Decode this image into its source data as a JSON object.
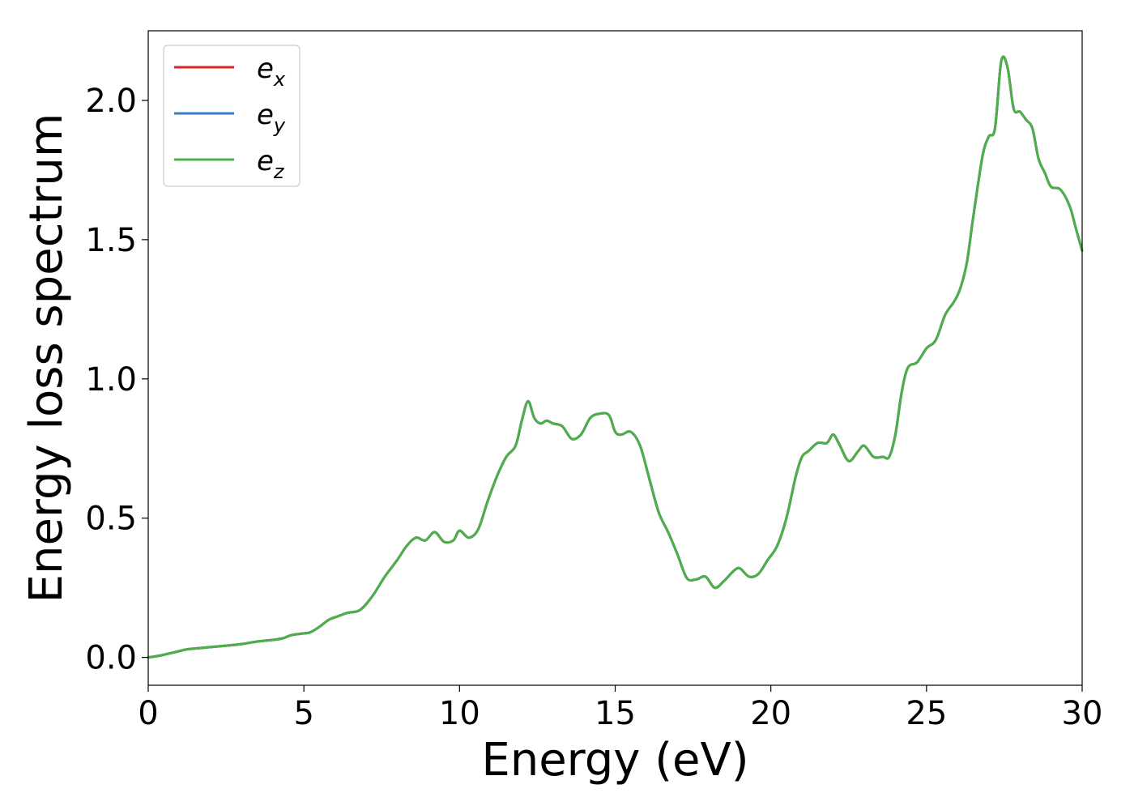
{
  "chart_data": {
    "type": "line",
    "title": "",
    "xlabel": "Energy (eV)",
    "ylabel": "Energy loss spectrum",
    "xlim": [
      0,
      30
    ],
    "ylim": [
      -0.1,
      2.25
    ],
    "xticks": [
      0,
      5,
      10,
      15,
      20,
      25,
      30
    ],
    "xtick_labels": [
      "0",
      "5",
      "10",
      "15",
      "20",
      "25",
      "30"
    ],
    "yticks": [
      0.0,
      0.5,
      1.0,
      1.5,
      2.0
    ],
    "ytick_labels": [
      "0.0",
      "0.5",
      "1.0",
      "1.5",
      "2.0"
    ],
    "grid": false,
    "legend_position": "top-left",
    "x": [
      0,
      0.3,
      0.6,
      0.9,
      1.2,
      1.5,
      2.0,
      2.5,
      3.0,
      3.5,
      4.0,
      4.3,
      4.6,
      4.9,
      5.2,
      5.5,
      5.8,
      6.1,
      6.4,
      6.8,
      7.2,
      7.6,
      8.0,
      8.3,
      8.6,
      8.9,
      9.2,
      9.5,
      9.8,
      10.0,
      10.3,
      10.6,
      10.9,
      11.2,
      11.5,
      11.8,
      12.0,
      12.2,
      12.4,
      12.6,
      12.8,
      13.0,
      13.3,
      13.6,
      13.9,
      14.2,
      14.5,
      14.8,
      15.0,
      15.2,
      15.5,
      15.8,
      16.1,
      16.4,
      16.7,
      17.0,
      17.3,
      17.6,
      17.9,
      18.2,
      18.5,
      18.8,
      19.0,
      19.3,
      19.6,
      19.9,
      20.2,
      20.5,
      20.8,
      21.0,
      21.2,
      21.5,
      21.8,
      22.0,
      22.2,
      22.5,
      22.8,
      23.0,
      23.3,
      23.6,
      23.8,
      24.0,
      24.2,
      24.4,
      24.7,
      25.0,
      25.3,
      25.6,
      25.9,
      26.1,
      26.3,
      26.5,
      26.8,
      27.0,
      27.2,
      27.4,
      27.6,
      27.8,
      28.0,
      28.2,
      28.4,
      28.6,
      28.8,
      29.0,
      29.3,
      29.6,
      29.8,
      30.0
    ],
    "series": [
      {
        "name": "e_x",
        "color": "#d62728",
        "y": [
          0.0,
          0.005,
          0.012,
          0.02,
          0.028,
          0.032,
          0.037,
          0.042,
          0.048,
          0.057,
          0.063,
          0.068,
          0.08,
          0.085,
          0.09,
          0.11,
          0.135,
          0.148,
          0.16,
          0.17,
          0.22,
          0.29,
          0.35,
          0.4,
          0.43,
          0.42,
          0.45,
          0.415,
          0.42,
          0.455,
          0.43,
          0.46,
          0.56,
          0.65,
          0.72,
          0.76,
          0.85,
          0.92,
          0.86,
          0.84,
          0.85,
          0.84,
          0.83,
          0.785,
          0.8,
          0.86,
          0.875,
          0.87,
          0.81,
          0.8,
          0.81,
          0.76,
          0.64,
          0.52,
          0.45,
          0.37,
          0.285,
          0.28,
          0.29,
          0.25,
          0.275,
          0.31,
          0.32,
          0.29,
          0.3,
          0.35,
          0.4,
          0.5,
          0.65,
          0.72,
          0.74,
          0.77,
          0.77,
          0.8,
          0.765,
          0.705,
          0.74,
          0.76,
          0.72,
          0.72,
          0.72,
          0.8,
          0.95,
          1.04,
          1.06,
          1.11,
          1.14,
          1.23,
          1.28,
          1.33,
          1.42,
          1.58,
          1.8,
          1.87,
          1.9,
          2.14,
          2.12,
          1.97,
          1.96,
          1.93,
          1.9,
          1.79,
          1.74,
          1.69,
          1.68,
          1.62,
          1.54,
          1.46
        ]
      },
      {
        "name": "e_y",
        "color": "#377eb8",
        "y": [
          0.0,
          0.005,
          0.012,
          0.02,
          0.028,
          0.032,
          0.037,
          0.042,
          0.048,
          0.057,
          0.063,
          0.068,
          0.08,
          0.085,
          0.09,
          0.11,
          0.135,
          0.148,
          0.16,
          0.17,
          0.22,
          0.29,
          0.35,
          0.4,
          0.43,
          0.42,
          0.45,
          0.415,
          0.42,
          0.455,
          0.43,
          0.46,
          0.56,
          0.65,
          0.72,
          0.76,
          0.85,
          0.92,
          0.86,
          0.84,
          0.85,
          0.84,
          0.83,
          0.785,
          0.8,
          0.86,
          0.875,
          0.87,
          0.81,
          0.8,
          0.81,
          0.76,
          0.64,
          0.52,
          0.45,
          0.37,
          0.285,
          0.28,
          0.29,
          0.25,
          0.275,
          0.31,
          0.32,
          0.29,
          0.3,
          0.35,
          0.4,
          0.5,
          0.65,
          0.72,
          0.74,
          0.77,
          0.77,
          0.8,
          0.765,
          0.705,
          0.74,
          0.76,
          0.72,
          0.72,
          0.72,
          0.8,
          0.95,
          1.04,
          1.06,
          1.11,
          1.14,
          1.23,
          1.28,
          1.33,
          1.42,
          1.58,
          1.8,
          1.87,
          1.9,
          2.14,
          2.12,
          1.97,
          1.96,
          1.93,
          1.9,
          1.79,
          1.74,
          1.69,
          1.68,
          1.62,
          1.54,
          1.46
        ]
      },
      {
        "name": "e_z",
        "color": "#4daf4a",
        "y": [
          0.0,
          0.005,
          0.012,
          0.02,
          0.028,
          0.032,
          0.037,
          0.042,
          0.048,
          0.057,
          0.063,
          0.068,
          0.08,
          0.085,
          0.09,
          0.11,
          0.135,
          0.148,
          0.16,
          0.17,
          0.22,
          0.29,
          0.35,
          0.4,
          0.43,
          0.42,
          0.45,
          0.415,
          0.42,
          0.455,
          0.43,
          0.46,
          0.56,
          0.65,
          0.72,
          0.76,
          0.85,
          0.92,
          0.86,
          0.84,
          0.85,
          0.84,
          0.83,
          0.785,
          0.8,
          0.86,
          0.875,
          0.87,
          0.81,
          0.8,
          0.81,
          0.76,
          0.64,
          0.52,
          0.45,
          0.37,
          0.285,
          0.28,
          0.29,
          0.25,
          0.275,
          0.31,
          0.32,
          0.29,
          0.3,
          0.35,
          0.4,
          0.5,
          0.65,
          0.72,
          0.74,
          0.77,
          0.77,
          0.8,
          0.765,
          0.705,
          0.74,
          0.76,
          0.72,
          0.72,
          0.72,
          0.8,
          0.95,
          1.04,
          1.06,
          1.11,
          1.14,
          1.23,
          1.28,
          1.33,
          1.42,
          1.58,
          1.8,
          1.87,
          1.9,
          2.14,
          2.12,
          1.97,
          1.96,
          1.93,
          1.9,
          1.79,
          1.74,
          1.69,
          1.68,
          1.62,
          1.54,
          1.46
        ]
      }
    ],
    "legend": [
      {
        "base": "e",
        "sub": "x",
        "color": "#d62728"
      },
      {
        "base": "e",
        "sub": "y",
        "color": "#377eb8"
      },
      {
        "base": "e",
        "sub": "z",
        "color": "#4daf4a"
      }
    ]
  }
}
